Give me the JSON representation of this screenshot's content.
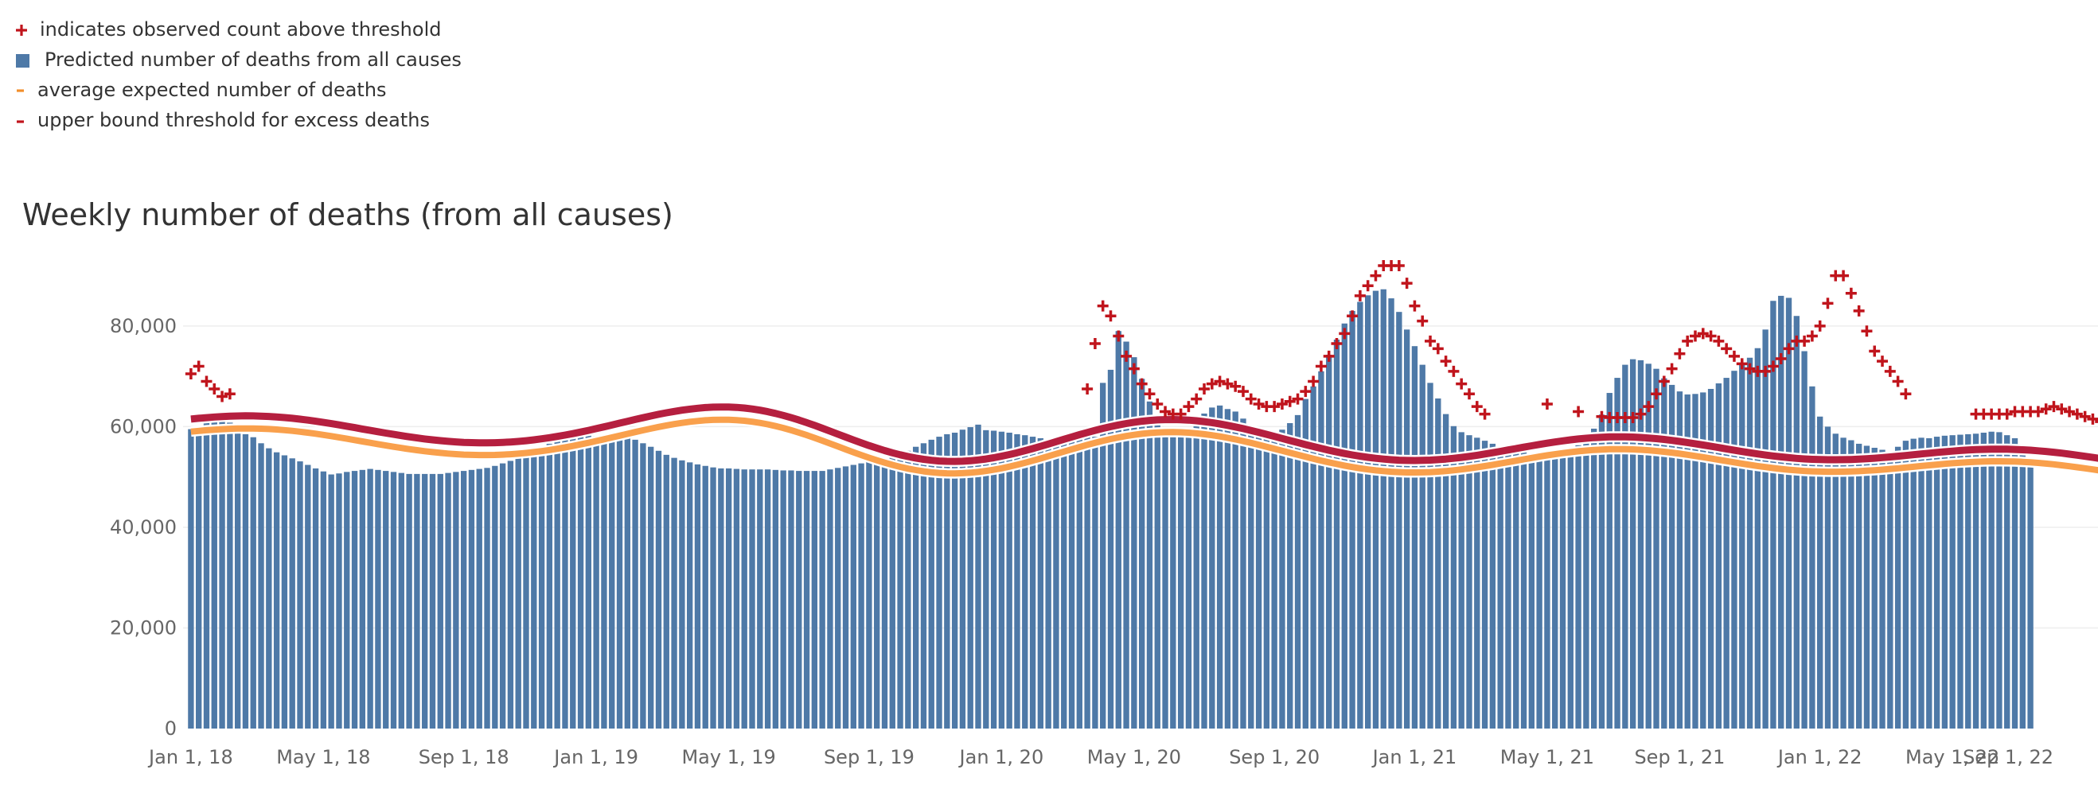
{
  "legend": {
    "items": [
      {
        "symbol": "+",
        "label": "indicates observed count above threshold",
        "color": "#c0141c"
      },
      {
        "symbol": "square",
        "label": "Predicted number of deaths from all causes",
        "color": "#4e79a7"
      },
      {
        "symbol": "-",
        "label": "average expected number of deaths",
        "color": "#f28e2b"
      },
      {
        "symbol": "-",
        "label": "upper bound threshold for excess deaths",
        "color": "#c0141c"
      }
    ]
  },
  "colors": {
    "bar": "#4e79a7",
    "expected": "#f9a04c",
    "threshold": "#b51f3f",
    "marker": "#c0141c",
    "grid": "#eeeeee",
    "text": "#333333",
    "axis_text": "#666666"
  },
  "chart_data": {
    "type": "bar",
    "title": "Weekly number of deaths (from all causes)",
    "xlabel": "",
    "ylabel": "",
    "ylim": [
      0,
      95000
    ],
    "grid": true,
    "legend_position": "top-left",
    "y_ticks": [
      {
        "value": 0,
        "label": "0"
      },
      {
        "value": 20000,
        "label": "20,000"
      },
      {
        "value": 40000,
        "label": "40,000"
      },
      {
        "value": 60000,
        "label": "60,000"
      },
      {
        "value": 80000,
        "label": "80,000"
      }
    ],
    "x_ticks": [
      {
        "label": "Jan 1, 18",
        "week": 0
      },
      {
        "label": "May 1, 18",
        "week": 17
      },
      {
        "label": "Sep 1, 18",
        "week": 35
      },
      {
        "label": "Jan 1, 19",
        "week": 52
      },
      {
        "label": "May 1, 19",
        "week": 69
      },
      {
        "label": "Sep 1, 19",
        "week": 87
      },
      {
        "label": "Jan 1, 20",
        "week": 104
      },
      {
        "label": "May 1, 20",
        "week": 121
      },
      {
        "label": "Sep 1, 20",
        "week": 139
      },
      {
        "label": "Jan 1, 21",
        "week": 157
      },
      {
        "label": "May 1, 21",
        "week": 174
      },
      {
        "label": "Sep 1, 21",
        "week": 191
      },
      {
        "label": "Jan 1, 22",
        "week": 209
      },
      {
        "label": "May 1, 22",
        "week": 226
      },
      {
        "label": "Sep 1, 22",
        "week": 243
      }
    ],
    "series": [
      {
        "key": "predicted",
        "type": "bar",
        "name": "Predicted number of deaths from all causes",
        "values": [
          59500,
          59700,
          61000,
          61700,
          62500,
          60800,
          59300,
          58500,
          57900,
          56700,
          55700,
          54900,
          54300,
          53700,
          53100,
          52400,
          51700,
          51100,
          50500,
          50700,
          51000,
          51200,
          51400,
          51600,
          51400,
          51200,
          51000,
          50800,
          50600,
          50600,
          50600,
          50600,
          50600,
          50800,
          51000,
          51200,
          51400,
          51600,
          51800,
          52200,
          52700,
          53200,
          53900,
          54700,
          55400,
          56100,
          56600,
          57100,
          57600,
          58000,
          58300,
          58200,
          58100,
          58000,
          58100,
          57900,
          57700,
          57400,
          56700,
          56000,
          55200,
          54400,
          53800,
          53300,
          52900,
          52500,
          52200,
          51900,
          51700,
          51700,
          51600,
          51500,
          51500,
          51500,
          51500,
          51400,
          51300,
          51300,
          51200,
          51200,
          51200,
          51200,
          51500,
          51800,
          52100,
          52400,
          52700,
          53000,
          53400,
          53700,
          54100,
          54600,
          55200,
          56000,
          56700,
          57400,
          58000,
          58500,
          58800,
          59400,
          59900,
          60400,
          59300,
          59200,
          59000,
          58800,
          58500,
          58300,
          58000,
          57700,
          57300,
          57400,
          57500,
          57700,
          57800,
          58000,
          58000,
          68700,
          71300,
          79000,
          76900,
          73800,
          69500,
          65000,
          61700,
          59300,
          58500,
          58500,
          58500,
          60100,
          62600,
          63800,
          64200,
          63500,
          63000,
          61600,
          60200,
          59200,
          58300,
          58800,
          59400,
          60700,
          62300,
          65500,
          68000,
          71000,
          74300,
          77300,
          80500,
          83000,
          84800,
          86100,
          87000,
          87300,
          85500,
          82800,
          79300,
          76000,
          72300,
          68700,
          65600,
          62500,
          60100,
          58900,
          58300,
          57800,
          57200,
          56600,
          56100,
          55600,
          55200,
          54900,
          54600,
          54400,
          54300,
          54500,
          54800,
          55400,
          56300,
          57500,
          59600,
          62400,
          66700,
          69700,
          72300,
          73400,
          73200,
          72500,
          71500,
          69600,
          68300,
          67000,
          66400,
          66500,
          66800,
          67500,
          68600,
          69700,
          71100,
          72300,
          73700,
          75600,
          79300,
          85000,
          86000,
          85600,
          82000,
          75000,
          68000,
          62000,
          60000,
          58600,
          57800,
          57300,
          56600,
          56200,
          55800,
          55400,
          55000,
          56000,
          57200,
          57600,
          57800,
          57700,
          58000,
          58200,
          58300,
          58400,
          58500,
          58600,
          58800,
          59000,
          58900,
          58300,
          57700,
          56400,
          52200
        ]
      },
      {
        "key": "expected",
        "type": "line",
        "name": "average expected number of deaths",
        "values": [
          59000,
          59154,
          59291,
          59409,
          59505,
          59576,
          59621,
          59639,
          59629,
          59591,
          59524,
          59429,
          59308,
          59162,
          58992,
          58800,
          58589,
          58362,
          58120,
          57866,
          57604,
          57336,
          57066,
          56795,
          56527,
          56264,
          56009,
          55765,
          55533,
          55317,
          55118,
          54938,
          54780,
          54644,
          54533,
          54447,
          54389,
          54358,
          54356,
          54382,
          54438,
          54522,
          54635,
          54776,
          54945,
          55141,
          55362,
          55608,
          55876,
          56166,
          56474,
          56799,
          57138,
          57488,
          57846,
          58208,
          58570,
          58928,
          59278,
          59615,
          59936,
          60235,
          60509,
          60753,
          60962,
          61133,
          61261,
          61344,
          61378,
          61361,
          61291,
          61166,
          60985,
          60749,
          60459,
          60117,
          59727,
          59293,
          58819,
          58311,
          57774,
          57217,
          56645,
          56066,
          55488,
          54917,
          54361,
          53825,
          53317,
          52843,
          52406,
          52012,
          51664,
          51367,
          51124,
          50935,
          50803,
          50729,
          50711,
          50750,
          50845,
          50993,
          51191,
          51436,
          51726,
          52055,
          52419,
          52813,
          53232,
          53670,
          54122,
          54581,
          55043,
          55500,
          55948,
          56380,
          56792,
          57178,
          57534,
          57856,
          58140,
          58383,
          58583,
          58737,
          58844,
          58904,
          58917,
          58882,
          58801,
          58675,
          58507,
          58299,
          58054,
          57776,
          57467,
          57132,
          56775,
          56400,
          56011,
          55613,
          55209,
          54804,
          54403,
          54008,
          53624,
          53254,
          52902,
          52570,
          52262,
          51981,
          51728,
          51506,
          51317,
          51161,
          51040,
          50955,
          50905,
          50891,
          50912,
          50967,
          51055,
          51175,
          51324,
          51499,
          51699,
          51921,
          52161,
          52415,
          52680,
          52953,
          53229,
          53505,
          53776,
          54039,
          54290,
          54525,
          54742,
          54937,
          55108,
          55252,
          55368,
          55454,
          55508,
          55530,
          55520,
          55478,
          55405,
          55302,
          55172,
          55015,
          54834,
          54633,
          54413,
          54178,
          53932,
          53678,
          53419,
          53159,
          52902,
          52651,
          52410,
          52181,
          51968,
          51772,
          51596,
          51443,
          51312,
          51206,
          51125,
          51070,
          51040,
          51035,
          51054,
          51096,
          51159,
          51242,
          51343,
          51459,
          51588,
          51727,
          51873,
          52024,
          52176,
          52326,
          52471,
          52608,
          52733,
          52845,
          52940,
          53017,
          53073,
          53106,
          53116,
          53100,
          53060,
          52995,
          52906,
          52793,
          52658,
          52503,
          52329,
          52138,
          51933,
          51718,
          51494,
          51266,
          51036,
          50807,
          50582,
          50364,
          50155,
          49959
        ]
      },
      {
        "key": "threshold",
        "type": "line",
        "name": "upper bound threshold for excess deaths",
        "values": [
          61500,
          61656,
          61794,
          61914,
          62011,
          62082,
          62127,
          62146,
          62136,
          62097,
          62029,
          61932,
          61809,
          61661,
          61489,
          61294,
          61080,
          60849,
          60604,
          60347,
          60081,
          59809,
          59535,
          59260,
          58988,
          58721,
          58463,
          58215,
          57980,
          57760,
          57558,
          57376,
          57216,
          57078,
          56965,
          56878,
          56819,
          56788,
          56785,
          56812,
          56868,
          56953,
          57068,
          57211,
          57382,
          57581,
          57806,
          58055,
          58327,
          58620,
          58933,
          59263,
          59607,
          59962,
          60325,
          60693,
          61060,
          61423,
          61779,
          62121,
          62446,
          62750,
          63028,
          63276,
          63488,
          63661,
          63791,
          63875,
          63910,
          63892,
          63821,
          63695,
          63511,
          63271,
          62977,
          62630,
          62234,
          61794,
          61313,
          60797,
          60253,
          59688,
          59107,
          58520,
          57933,
          57354,
          56790,
          56246,
          55731,
          55250,
          54807,
          54407,
          54055,
          53754,
          53507,
          53316,
          53182,
          53107,
          53089,
          53128,
          53225,
          53375,
          53576,
          53825,
          54119,
          54452,
          54822,
          55222,
          55647,
          56091,
          56549,
          57015,
          57484,
          57948,
          58402,
          58840,
          59258,
          59650,
          60011,
          60338,
          60626,
          60872,
          61075,
          61231,
          61340,
          61401,
          61414,
          61379,
          61297,
          61169,
          60999,
          60788,
          60539,
          60257,
          59944,
          59604,
          59242,
          58861,
          58467,
          58063,
          57654,
          57243,
          56836,
          56435,
          56045,
          55670,
          55313,
          54976,
          54664,
          54379,
          54122,
          53897,
          53705,
          53547,
          53424,
          53338,
          53287,
          53273,
          53294,
          53350,
          53439,
          53561,
          53712,
          53890,
          54093,
          54318,
          54561,
          54819,
          55088,
          55365,
          55645,
          55925,
          56200,
          56467,
          56721,
          56960,
          57180,
          57378,
          57552,
          57698,
          57816,
          57903,
          57958,
          57980,
          57970,
          57927,
          57853,
          57749,
          57617,
          57458,
          57274,
          57070,
          56847,
          56609,
          56359,
          56101,
          55839,
          55575,
          55314,
          55060,
          54815,
          54583,
          54367,
          54168,
          53990,
          53834,
          53701,
          53593,
          53511,
          53456,
          53425,
          53420,
          53439,
          53482,
          53546,
          53630,
          53732,
          53850,
          53981,
          54122,
          54270,
          54423,
          54577,
          54729,
          54876,
          55015,
          55142,
          55256,
          55352,
          55430,
          55487,
          55521,
          55531,
          55515,
          55474,
          55408,
          55318,
          55204,
          55067,
          54909,
          54733,
          54540,
          54332,
          54114,
          53887,
          53655,
          53422,
          53190,
          52962,
          52741,
          52529,
          52330
        ]
      }
    ],
    "markers_above_threshold": {
      "name": "indicates observed count above threshold",
      "weeks": [
        0,
        1,
        2,
        3,
        4,
        5,
        115,
        116,
        117,
        118,
        119,
        120,
        121,
        122,
        123,
        124,
        125,
        126,
        127,
        128,
        129,
        130,
        131,
        132,
        133,
        134,
        135,
        136,
        137,
        138,
        139,
        140,
        141,
        142,
        143,
        144,
        145,
        146,
        147,
        148,
        149,
        150,
        151,
        152,
        153,
        154,
        155,
        156,
        157,
        158,
        159,
        160,
        161,
        162,
        163,
        164,
        165,
        166,
        174,
        178,
        181,
        182,
        183,
        184,
        185,
        186,
        187,
        188,
        189,
        190,
        191,
        192,
        193,
        194,
        195,
        196,
        197,
        198,
        199,
        200,
        201,
        202,
        203,
        204,
        205,
        206,
        207,
        208,
        209,
        210,
        211,
        212,
        213,
        214,
        215,
        216,
        217,
        218,
        219,
        220,
        229,
        230,
        231,
        232,
        233,
        234,
        235,
        236,
        237,
        238,
        239,
        240,
        241,
        242,
        243,
        244,
        245
      ],
      "values": [
        70500,
        72000,
        69000,
        67500,
        66000,
        66500,
        67500,
        76500,
        84000,
        82000,
        78000,
        74000,
        71500,
        68500,
        66500,
        64500,
        63000,
        62500,
        62500,
        64000,
        65500,
        67500,
        68500,
        69000,
        68500,
        68000,
        67000,
        65500,
        64500,
        64000,
        64000,
        64500,
        65000,
        65500,
        67000,
        69000,
        72000,
        74000,
        76500,
        78500,
        82000,
        86000,
        88000,
        90000,
        92000,
        92000,
        92000,
        88500,
        84000,
        81000,
        77000,
        75500,
        73000,
        71000,
        68500,
        66500,
        64000,
        62500,
        64500,
        63000,
        62000,
        61800,
        61800,
        61800,
        61800,
        62500,
        64000,
        66500,
        69000,
        71500,
        74500,
        77000,
        78000,
        78500,
        78000,
        77000,
        75500,
        74000,
        72500,
        71500,
        71000,
        71000,
        72000,
        73500,
        75500,
        77000,
        77000,
        78000,
        80000,
        84500,
        90000,
        90000,
        86500,
        83000,
        79000,
        75000,
        73000,
        71000,
        69000,
        66500,
        62500,
        62500,
        62500,
        62500,
        62500,
        63000,
        63000,
        63000,
        63000,
        63500,
        64000,
        63500,
        63000,
        62500,
        62000,
        61500,
        61000
      ]
    }
  }
}
